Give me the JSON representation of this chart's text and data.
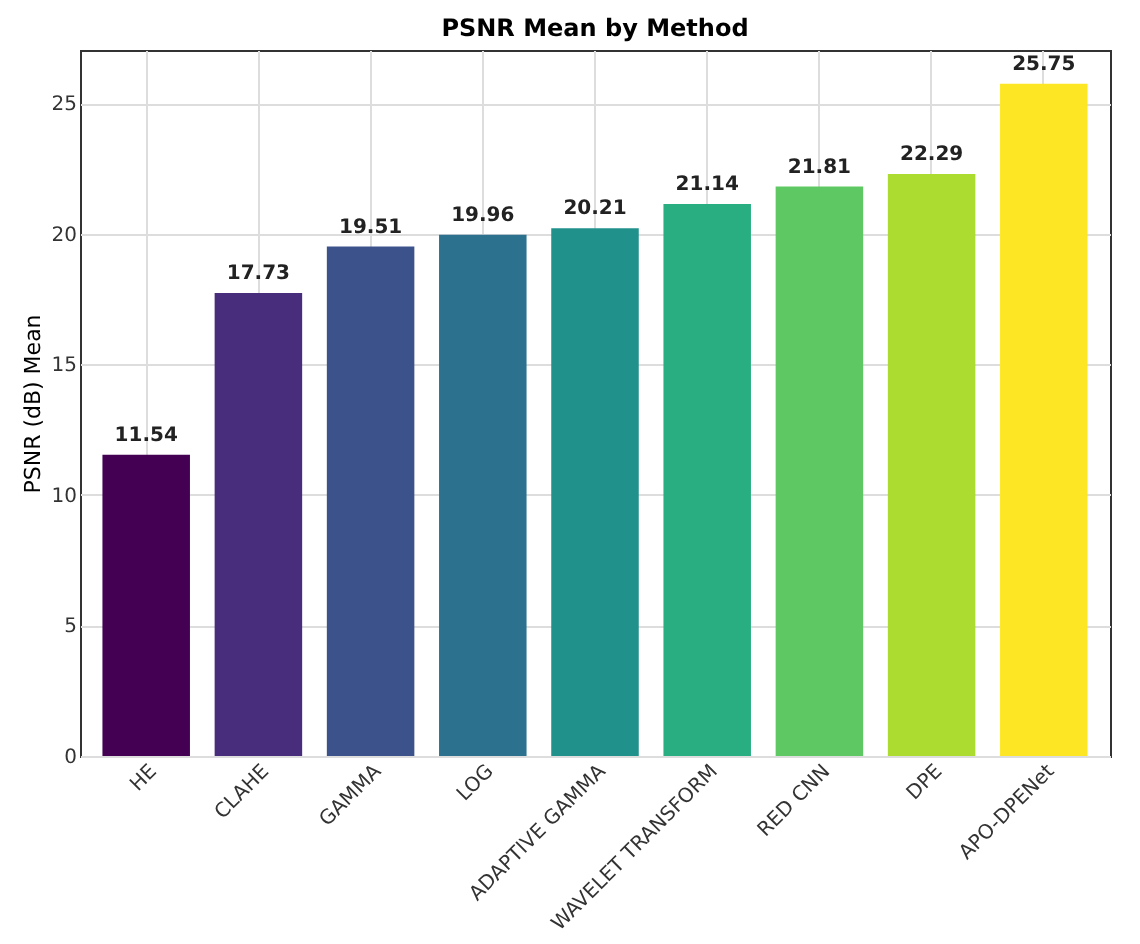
{
  "chart_data": {
    "type": "bar",
    "title": "PSNR Mean by Method",
    "ylabel": "PSNR (dB) Mean",
    "categories": [
      "HE",
      "CLAHE",
      "GAMMA",
      "LOG",
      "ADAPTIVE GAMMA",
      "WAVELET TRANSFORM",
      "RED CNN",
      "DPE",
      "APO-DPENet"
    ],
    "values": [
      11.54,
      17.73,
      19.51,
      19.96,
      20.21,
      21.14,
      21.81,
      22.29,
      25.75
    ],
    "colors": [
      "#440154",
      "#472d7b",
      "#3b528b",
      "#2c728e",
      "#21918c",
      "#28ae80",
      "#5ec962",
      "#addc30",
      "#fde725"
    ],
    "ylim": [
      0,
      27.04
    ],
    "yticks": [
      0,
      5,
      10,
      15,
      20,
      25
    ],
    "grid": true,
    "data_labels": true
  }
}
